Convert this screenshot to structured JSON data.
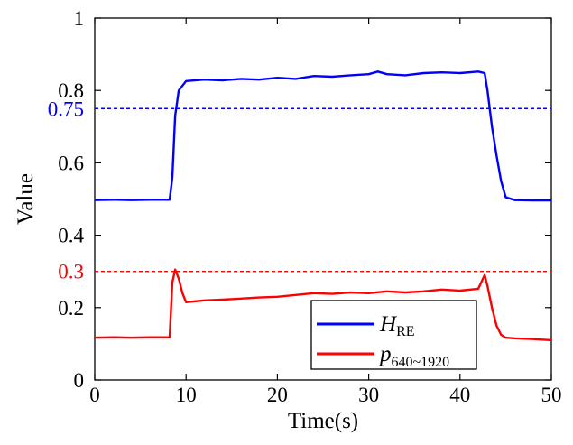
{
  "chart_data": {
    "type": "line",
    "title": "",
    "xlabel": "Time(s)",
    "ylabel": "Value",
    "xlim": [
      0,
      50
    ],
    "ylim": [
      0,
      1
    ],
    "xticks": [
      0,
      10,
      20,
      30,
      40,
      50
    ],
    "yticks": [
      0,
      0.2,
      0.4,
      0.6,
      0.8,
      1
    ],
    "xtick_labels": [
      "0",
      "10",
      "20",
      "30",
      "40",
      "50"
    ],
    "ytick_labels": [
      "0",
      "0.2",
      "0.4",
      "0.6",
      "0.8",
      "1"
    ],
    "grid": false,
    "legend_position": "bottom-right",
    "reference_lines": [
      {
        "label": "0.75",
        "y": 0.75,
        "color": "#0000ff",
        "style": "dashed"
      },
      {
        "label": "0.3",
        "y": 0.3,
        "color": "#ff0000",
        "style": "dashed"
      }
    ],
    "series": [
      {
        "name": "H_RE",
        "legend_main": "H",
        "legend_sub": "RE",
        "color": "#0000ff",
        "x": [
          0,
          2,
          4,
          6,
          8.2,
          8.5,
          8.8,
          9.2,
          10,
          12,
          14,
          16,
          18,
          20,
          22,
          24,
          26,
          28,
          30,
          31,
          32,
          34,
          36,
          38,
          40,
          42,
          42.7,
          43,
          43.5,
          44,
          44.5,
          45,
          46,
          48,
          50
        ],
        "values": [
          0.497,
          0.498,
          0.497,
          0.498,
          0.498,
          0.56,
          0.73,
          0.8,
          0.826,
          0.83,
          0.828,
          0.832,
          0.83,
          0.835,
          0.832,
          0.84,
          0.838,
          0.842,
          0.845,
          0.852,
          0.845,
          0.842,
          0.848,
          0.85,
          0.848,
          0.852,
          0.848,
          0.8,
          0.7,
          0.62,
          0.55,
          0.505,
          0.497,
          0.496,
          0.496
        ]
      },
      {
        "name": "p_640~1920",
        "legend_main": "p",
        "legend_sub": "640~1920",
        "color": "#ff0000",
        "x": [
          0,
          2,
          4,
          6,
          8.2,
          8.5,
          8.8,
          9.2,
          9.6,
          10,
          12,
          14,
          16,
          18,
          20,
          22,
          24,
          26,
          28,
          30,
          32,
          34,
          36,
          38,
          40,
          42,
          42.7,
          43,
          43.5,
          44,
          44.5,
          45,
          46,
          48,
          50
        ],
        "values": [
          0.117,
          0.118,
          0.117,
          0.118,
          0.118,
          0.27,
          0.305,
          0.28,
          0.24,
          0.215,
          0.22,
          0.222,
          0.225,
          0.228,
          0.23,
          0.235,
          0.24,
          0.238,
          0.242,
          0.24,
          0.245,
          0.242,
          0.245,
          0.25,
          0.247,
          0.252,
          0.29,
          0.26,
          0.2,
          0.15,
          0.125,
          0.117,
          0.115,
          0.113,
          0.11
        ]
      }
    ]
  }
}
